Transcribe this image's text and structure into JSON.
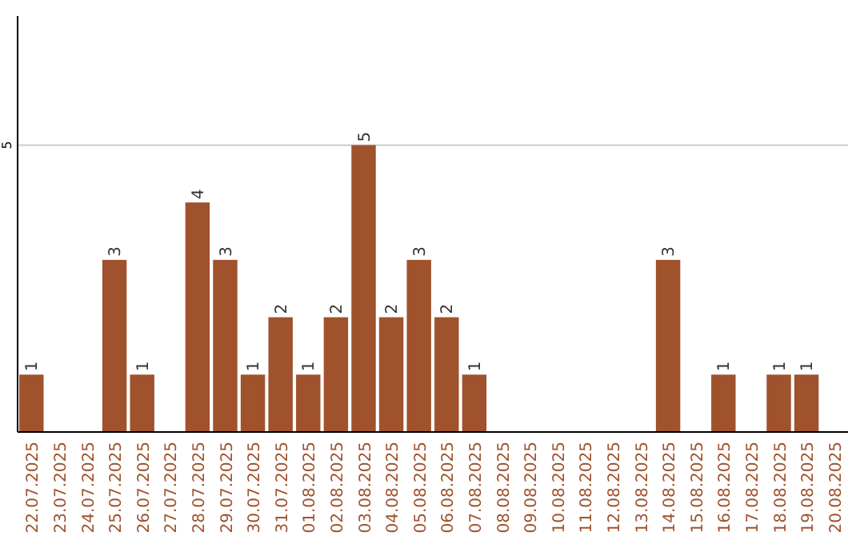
{
  "chart_data": {
    "type": "bar",
    "categories": [
      "22.07.2025",
      "23.07.2025",
      "24.07.2025",
      "25.07.2025",
      "26.07.2025",
      "27.07.2025",
      "28.07.2025",
      "29.07.2025",
      "30.07.2025",
      "31.07.2025",
      "01.08.2025",
      "02.08.2025",
      "03.08.2025",
      "04.08.2025",
      "05.08.2025",
      "06.08.2025",
      "07.08.2025",
      "08.08.2025",
      "09.08.2025",
      "10.08.2025",
      "11.08.2025",
      "12.08.2025",
      "13.08.2025",
      "14.08.2025",
      "15.08.2025",
      "16.08.2025",
      "17.08.2025",
      "18.08.2025",
      "19.08.2025",
      "20.08.2025"
    ],
    "values": [
      1,
      0,
      0,
      3,
      1,
      0,
      4,
      3,
      1,
      2,
      1,
      2,
      5,
      2,
      3,
      2,
      1,
      0,
      0,
      0,
      0,
      0,
      0,
      3,
      0,
      1,
      0,
      1,
      1,
      0
    ],
    "value_labels": [
      "1",
      null,
      null,
      "3",
      "1",
      null,
      "4",
      "3",
      "1",
      "2",
      "1",
      "2",
      "5",
      "2",
      "3",
      "2",
      "1",
      null,
      null,
      null,
      null,
      null,
      null,
      "3",
      null,
      "1",
      null,
      "1",
      "1",
      null
    ],
    "color": "#a0522d",
    "ylim": [
      0,
      7.25
    ],
    "yticks": [
      5
    ],
    "grid": "y"
  }
}
